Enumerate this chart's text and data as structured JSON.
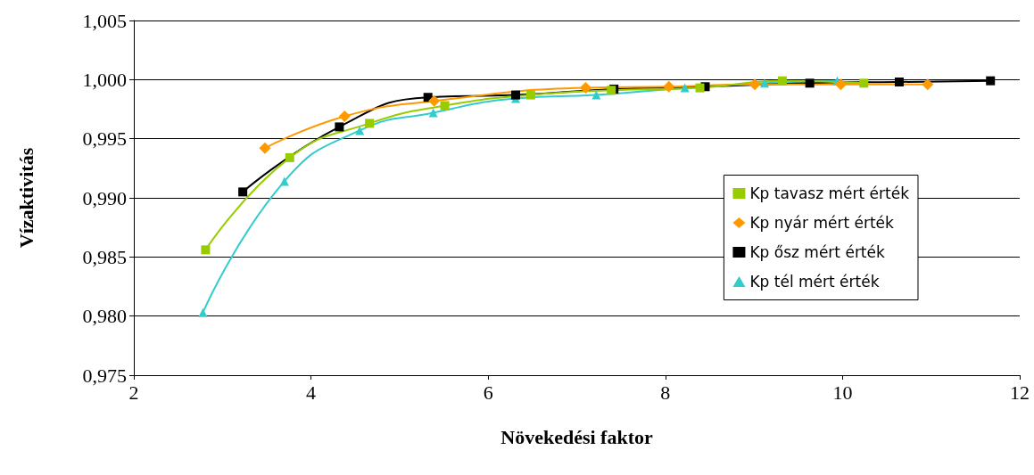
{
  "chart_data": {
    "type": "line",
    "xlabel": "Növekedési faktor",
    "ylabel": "Vízaktivitás",
    "xlim": [
      2,
      12
    ],
    "xticks": [
      2,
      4,
      6,
      8,
      10,
      12
    ],
    "ylim": [
      0.975,
      1.005
    ],
    "yticks": [
      {
        "value": 0.975,
        "label": "0,975"
      },
      {
        "value": 0.98,
        "label": "0,980"
      },
      {
        "value": 0.985,
        "label": "0,985"
      },
      {
        "value": 0.99,
        "label": "0,990"
      },
      {
        "value": 0.995,
        "label": "0,995"
      },
      {
        "value": 1.0,
        "label": "1,000"
      },
      {
        "value": 1.005,
        "label": "1,005"
      }
    ],
    "grid": "y",
    "legend": "right",
    "series": [
      {
        "name": "Kp tavasz mért érték",
        "color": "#99cc00",
        "marker": "square",
        "x": [
          2.81,
          3.76,
          4.66,
          5.51,
          6.48,
          7.39,
          8.39,
          9.32,
          10.24
        ],
        "values": [
          0.9856,
          0.9934,
          0.9963,
          0.9978,
          0.9987,
          0.9991,
          0.9993,
          0.9999,
          0.9997
        ]
      },
      {
        "name": "Kp nyár mért érték",
        "color": "#ff9900",
        "marker": "diamond",
        "x": [
          3.48,
          4.38,
          5.39,
          7.1,
          8.04,
          9.01,
          9.98,
          10.96
        ],
        "values": [
          0.9942,
          0.9969,
          0.9982,
          0.9993,
          0.9994,
          0.9996,
          0.9996,
          0.9996
        ]
      },
      {
        "name": "Kp ősz mért érték",
        "color": "#000000",
        "marker": "square",
        "x": [
          3.23,
          4.32,
          5.32,
          6.31,
          7.42,
          8.45,
          9.63,
          10.64,
          11.67
        ],
        "values": [
          0.9905,
          0.996,
          0.9985,
          0.9987,
          0.9992,
          0.9994,
          0.9997,
          0.9998,
          0.9999
        ]
      },
      {
        "name": "Kp tél mért érték",
        "color": "#33cccc",
        "marker": "triangle",
        "x": [
          2.78,
          3.7,
          4.55,
          5.38,
          6.31,
          7.22,
          8.22,
          9.12,
          9.94
        ],
        "values": [
          0.9803,
          0.9914,
          0.9957,
          0.9972,
          0.9984,
          0.9987,
          0.9993,
          0.9997,
          0.9999
        ]
      }
    ]
  }
}
